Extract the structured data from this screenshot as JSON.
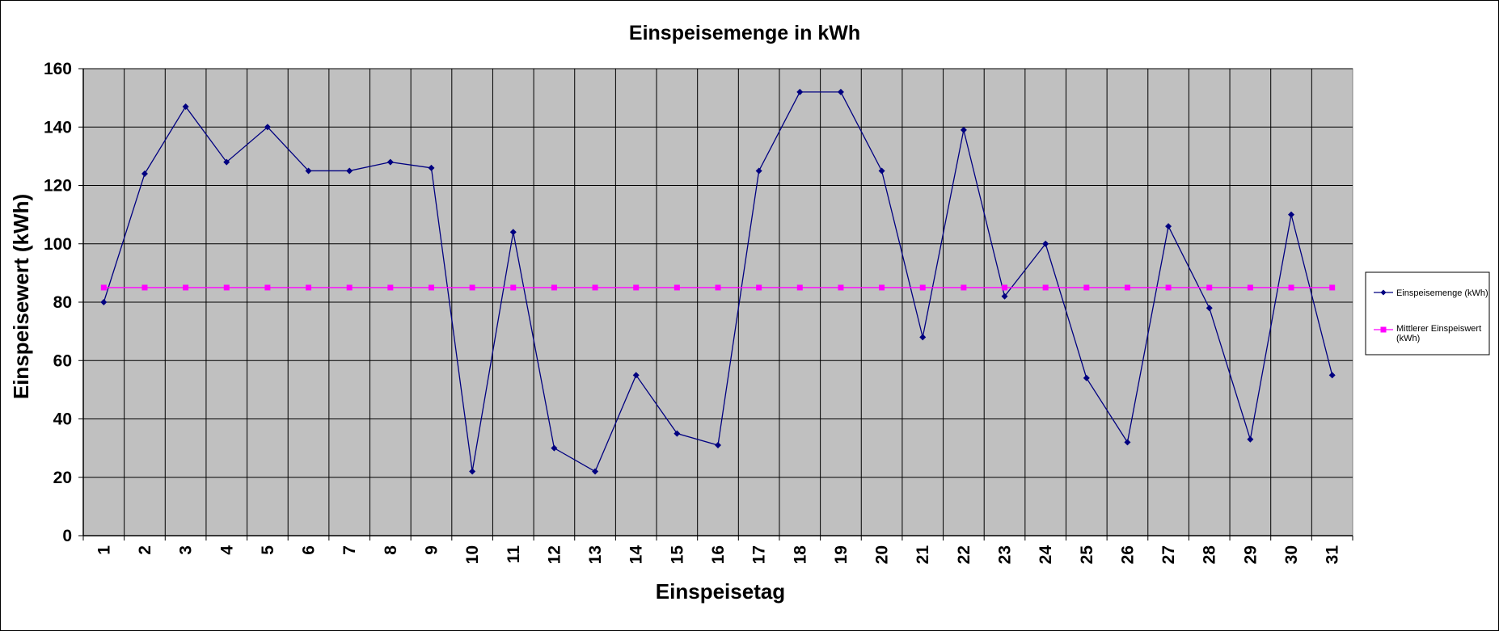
{
  "chart_data": {
    "type": "line",
    "title": "Einspeisemenge in kWh",
    "xlabel": "Einspeisetag",
    "ylabel": "Einspeisewert  (kWh)",
    "ylim": [
      0,
      160
    ],
    "y_ticks": [
      0,
      20,
      40,
      60,
      80,
      100,
      120,
      140,
      160
    ],
    "categories": [
      "1",
      "2",
      "3",
      "4",
      "5",
      "6",
      "7",
      "8",
      "9",
      "10",
      "11",
      "12",
      "13",
      "14",
      "15",
      "16",
      "17",
      "18",
      "19",
      "20",
      "21",
      "22",
      "23",
      "24",
      "25",
      "26",
      "27",
      "28",
      "29",
      "30",
      "31"
    ],
    "grid": true,
    "plot_background": "#c0c0c0",
    "legend_position": "right",
    "series": [
      {
        "name": "Einspeisemenge (kWh)",
        "color": "#000080",
        "marker": "diamond",
        "values": [
          80,
          124,
          147,
          128,
          140,
          125,
          125,
          128,
          126,
          22,
          104,
          30,
          22,
          55,
          35,
          31,
          125,
          152,
          152,
          125,
          68,
          139,
          82,
          100,
          54,
          32,
          106,
          78,
          33,
          110,
          55
        ]
      },
      {
        "name": "Mittlerer Einspeiswert (kWh)",
        "color": "#ff00ff",
        "marker": "square",
        "values": [
          85,
          85,
          85,
          85,
          85,
          85,
          85,
          85,
          85,
          85,
          85,
          85,
          85,
          85,
          85,
          85,
          85,
          85,
          85,
          85,
          85,
          85,
          85,
          85,
          85,
          85,
          85,
          85,
          85,
          85,
          85
        ]
      }
    ]
  }
}
